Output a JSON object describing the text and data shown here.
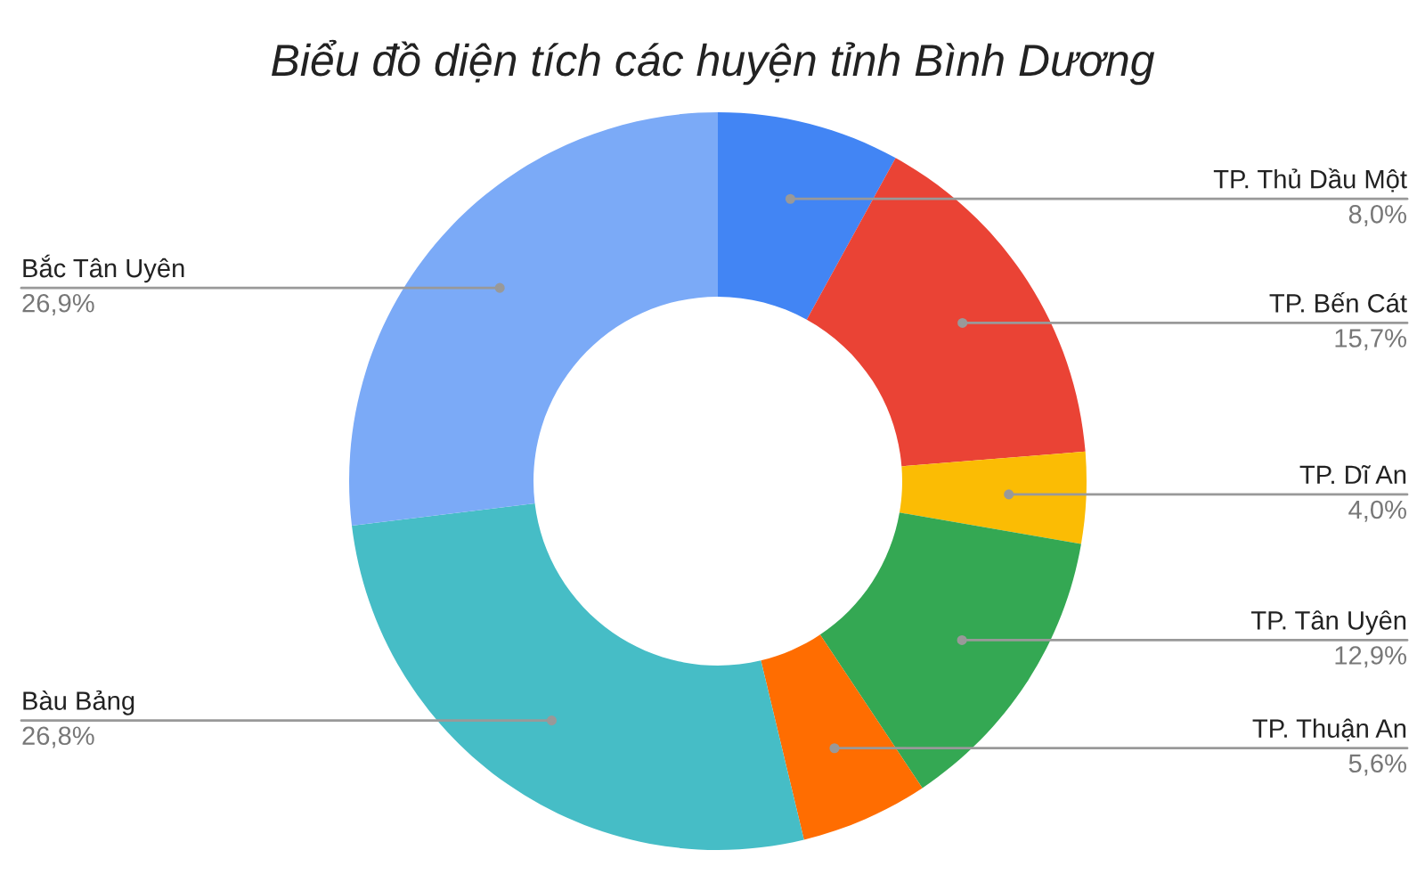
{
  "chart_data": {
    "type": "donut",
    "title": "Biểu đồ diện tích các huyện tỉnh Bình Dương",
    "categories": [
      "TP. Thủ Dầu Một",
      "TP. Bến Cát",
      "TP. Dĩ An",
      "TP. Tân Uyên",
      "TP. Thuận An",
      "Bàu Bảng",
      "Bắc Tân Uyên"
    ],
    "values": [
      8.0,
      15.7,
      4.0,
      12.9,
      5.6,
      26.8,
      26.9
    ],
    "value_labels": [
      "8,0%",
      "15,7%",
      "4,0%",
      "12,9%",
      "5,6%",
      "26,8%",
      "26,9%"
    ],
    "colors": [
      "#4285f4",
      "#ea4335",
      "#fbbc04",
      "#34a853",
      "#ff6d01",
      "#46bdc6",
      "#7baaf7"
    ],
    "legend": false
  }
}
